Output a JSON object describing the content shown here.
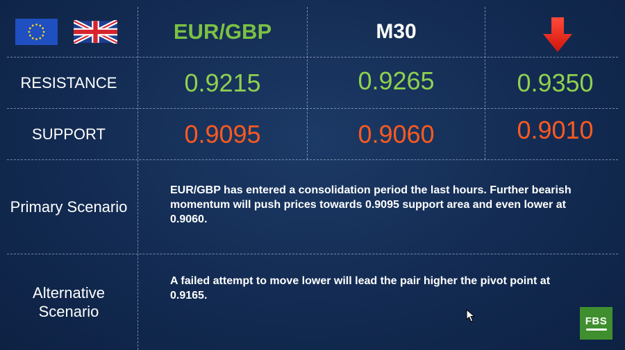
{
  "header": {
    "flags": [
      "eu-flag",
      "uk-flag"
    ],
    "pair": "EUR/GBP",
    "timeframe": "M30",
    "direction_icon": "arrow-down-icon",
    "direction_color": "#e8261c"
  },
  "rows": {
    "resistance": {
      "label": "RESISTANCE",
      "values": [
        "0.9215",
        "0.9265",
        "0.9350"
      ]
    },
    "support": {
      "label": "SUPPORT",
      "values": [
        "0.9095",
        "0.9060",
        "0.9010"
      ]
    }
  },
  "scenarios": {
    "primary": {
      "label": "Primary Scenario",
      "text": "EUR/GBP has entered a consolidation period the last hours. Further bearish momentum will push prices towards 0.9095 support area and even lower at 0.9060."
    },
    "alternative": {
      "label_line1": "Alternative",
      "label_line2": "Scenario",
      "text": "A failed attempt to move lower will lead the pair higher the pivot point at 0.9165."
    }
  },
  "brand": {
    "logo_text": "FBS",
    "logo_color": "#3f8f2f"
  },
  "colors": {
    "resistance": "#8fd14f",
    "support": "#ff5a1f",
    "pair": "#7cc243",
    "background": "#132b52"
  }
}
